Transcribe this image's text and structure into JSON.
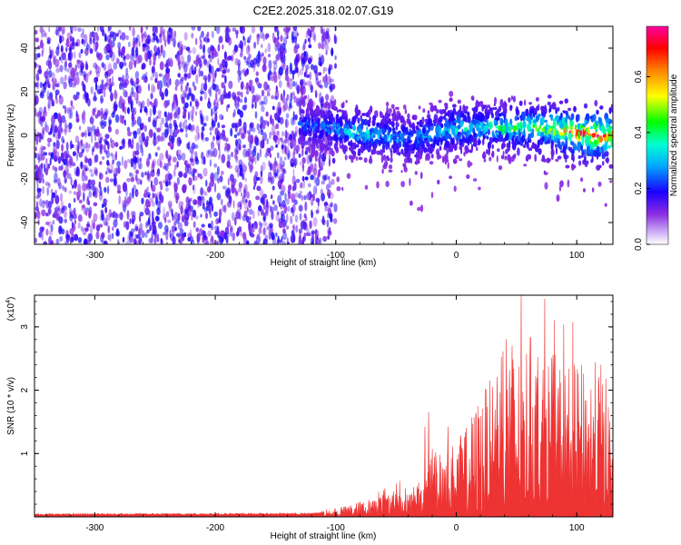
{
  "title": "C2E2.2025.318.02.07.G19",
  "chart_data": [
    {
      "type": "heatmap",
      "xlabel": "Height of straight line (km)",
      "ylabel": "Frequency (Hz)",
      "xlim": [
        -350,
        130
      ],
      "ylim": [
        -50,
        50
      ],
      "xticks": [
        -300,
        -200,
        -100,
        0,
        100
      ],
      "yticks": [
        -40,
        -20,
        0,
        20,
        40
      ],
      "colorbar": {
        "label": "Normalized spectral amplitude",
        "range": [
          0.0,
          0.78
        ],
        "ticks": [
          "0.0",
          "0.2",
          "0.4",
          "0.6"
        ],
        "tick_values": [
          0.0,
          0.2,
          0.4,
          0.6
        ],
        "colormap": [
          "#ffffff",
          "#8a2be2",
          "#3a00ff",
          "#0000ff",
          "#00b0ff",
          "#00ffc0",
          "#00ff00",
          "#ffff00",
          "#ff8000",
          "#ff0000",
          "#ff00a0"
        ]
      },
      "noise_region": {
        "x": [
          -350,
          -100
        ],
        "y": [
          -50,
          50
        ],
        "amplitude": 0.05
      },
      "signal_trace": {
        "x": [
          -130,
          -100,
          -80,
          -60,
          -40,
          -20,
          0,
          20,
          40,
          60,
          80,
          100,
          120,
          130
        ],
        "y": [
          5,
          3,
          1,
          0,
          -2,
          1,
          3,
          4,
          3,
          4,
          3,
          1,
          0,
          0
        ],
        "amplitude": [
          0.15,
          0.2,
          0.3,
          0.25,
          0.2,
          0.25,
          0.3,
          0.3,
          0.35,
          0.4,
          0.5,
          0.65,
          0.75,
          0.6
        ]
      }
    },
    {
      "type": "area",
      "xlabel": "Height of straight line (km)",
      "ylabel": "SNR (10 * v/v)",
      "ylabel_exponent": "(x10",
      "ylabel_exponent_power": "4",
      "ylabel_exponent_close": ")",
      "xlim": [
        -350,
        130
      ],
      "ylim": [
        0,
        3.5
      ],
      "xticks": [
        -300,
        -200,
        -100,
        0,
        100
      ],
      "yticks": [
        1,
        2,
        3
      ],
      "color": "#ee3333",
      "envelope": {
        "x": [
          -350,
          -120,
          -100,
          -80,
          -60,
          -40,
          -30,
          -20,
          0,
          10,
          20,
          30,
          40,
          50,
          60,
          80,
          100,
          120,
          130
        ],
        "y": [
          0.05,
          0.06,
          0.12,
          0.25,
          0.35,
          0.4,
          0.6,
          1.1,
          1.2,
          1.5,
          2.0,
          2.2,
          3.4,
          2.6,
          2.9,
          2.6,
          2.4,
          2.5,
          1.8
        ]
      }
    }
  ]
}
